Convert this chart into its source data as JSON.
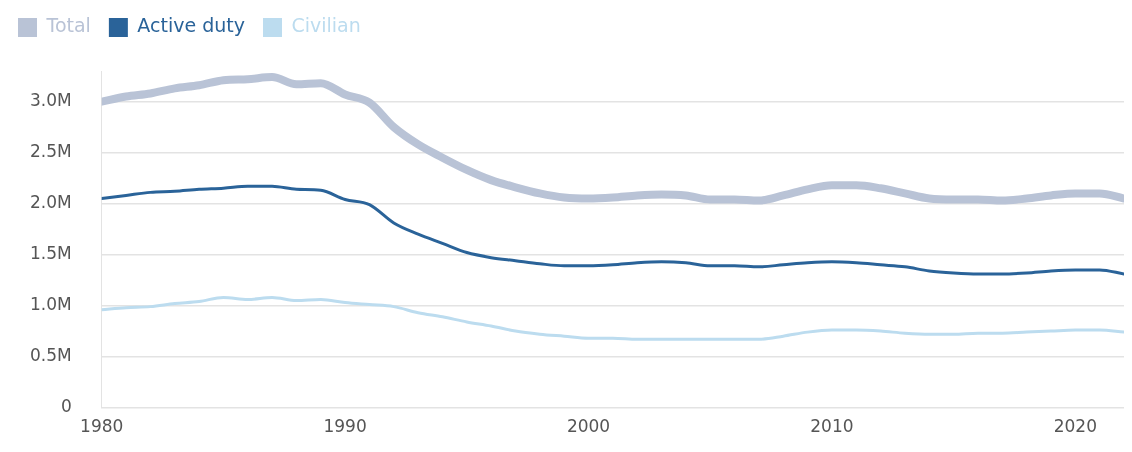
{
  "chart_data": {
    "type": "line",
    "legend": "top left",
    "grid": "y",
    "marker": "none",
    "line_style": "solid",
    "x": [
      1980,
      1981,
      1982,
      1983,
      1984,
      1985,
      1986,
      1987,
      1988,
      1989,
      1990,
      1991,
      1992,
      1993,
      1994,
      1995,
      1996,
      1997,
      1998,
      1999,
      2000,
      2001,
      2002,
      2003,
      2004,
      2005,
      2006,
      2007,
      2008,
      2009,
      2010,
      2011,
      2012,
      2013,
      2014,
      2015,
      2016,
      2017,
      2018,
      2019,
      2020,
      2021,
      2022
    ],
    "xlim": [
      1980,
      2022
    ],
    "xticks": [
      1980,
      1990,
      2000,
      2010,
      2020
    ],
    "ylim": [
      0,
      3.3
    ],
    "yticks": [
      0,
      {
        "value": 0.5,
        "label": "0.5M"
      },
      {
        "value": 1,
        "label": "1.0M"
      },
      {
        "value": 1.5,
        "label": "1.5M"
      },
      {
        "value": 2,
        "label": "2.0M"
      },
      {
        "value": 2.5,
        "label": "2.5M"
      },
      {
        "value": 3,
        "label": "3.0M"
      }
    ],
    "series": [
      {
        "name": "Total",
        "color": "#b9c3d6",
        "values": [
          3.0,
          3.05,
          3.08,
          3.13,
          3.16,
          3.21,
          3.22,
          3.24,
          3.17,
          3.18,
          3.07,
          2.99,
          2.75,
          2.58,
          2.45,
          2.33,
          2.23,
          2.16,
          2.1,
          2.06,
          2.05,
          2.06,
          2.08,
          2.09,
          2.08,
          2.04,
          2.04,
          2.03,
          2.08,
          2.14,
          2.18,
          2.18,
          2.15,
          2.1,
          2.05,
          2.04,
          2.04,
          2.03,
          2.05,
          2.08,
          2.1,
          2.1,
          2.05
        ]
      },
      {
        "name": "Active duty",
        "color": "#2a6399",
        "values": [
          2.05,
          2.08,
          2.11,
          2.12,
          2.14,
          2.15,
          2.17,
          2.17,
          2.14,
          2.13,
          2.04,
          1.99,
          1.81,
          1.7,
          1.61,
          1.52,
          1.47,
          1.44,
          1.41,
          1.39,
          1.39,
          1.4,
          1.42,
          1.43,
          1.42,
          1.39,
          1.39,
          1.38,
          1.4,
          1.42,
          1.43,
          1.42,
          1.4,
          1.38,
          1.34,
          1.32,
          1.31,
          1.31,
          1.32,
          1.34,
          1.35,
          1.35,
          1.31
        ]
      },
      {
        "name": "Civilian",
        "color": "#bcdcef",
        "values": [
          0.96,
          0.98,
          0.99,
          1.02,
          1.04,
          1.08,
          1.06,
          1.08,
          1.05,
          1.06,
          1.03,
          1.01,
          0.99,
          0.93,
          0.89,
          0.84,
          0.8,
          0.75,
          0.72,
          0.7,
          0.68,
          0.68,
          0.67,
          0.67,
          0.67,
          0.67,
          0.67,
          0.67,
          0.7,
          0.74,
          0.76,
          0.76,
          0.75,
          0.73,
          0.72,
          0.72,
          0.73,
          0.73,
          0.74,
          0.75,
          0.76,
          0.76,
          0.74
        ]
      }
    ]
  }
}
